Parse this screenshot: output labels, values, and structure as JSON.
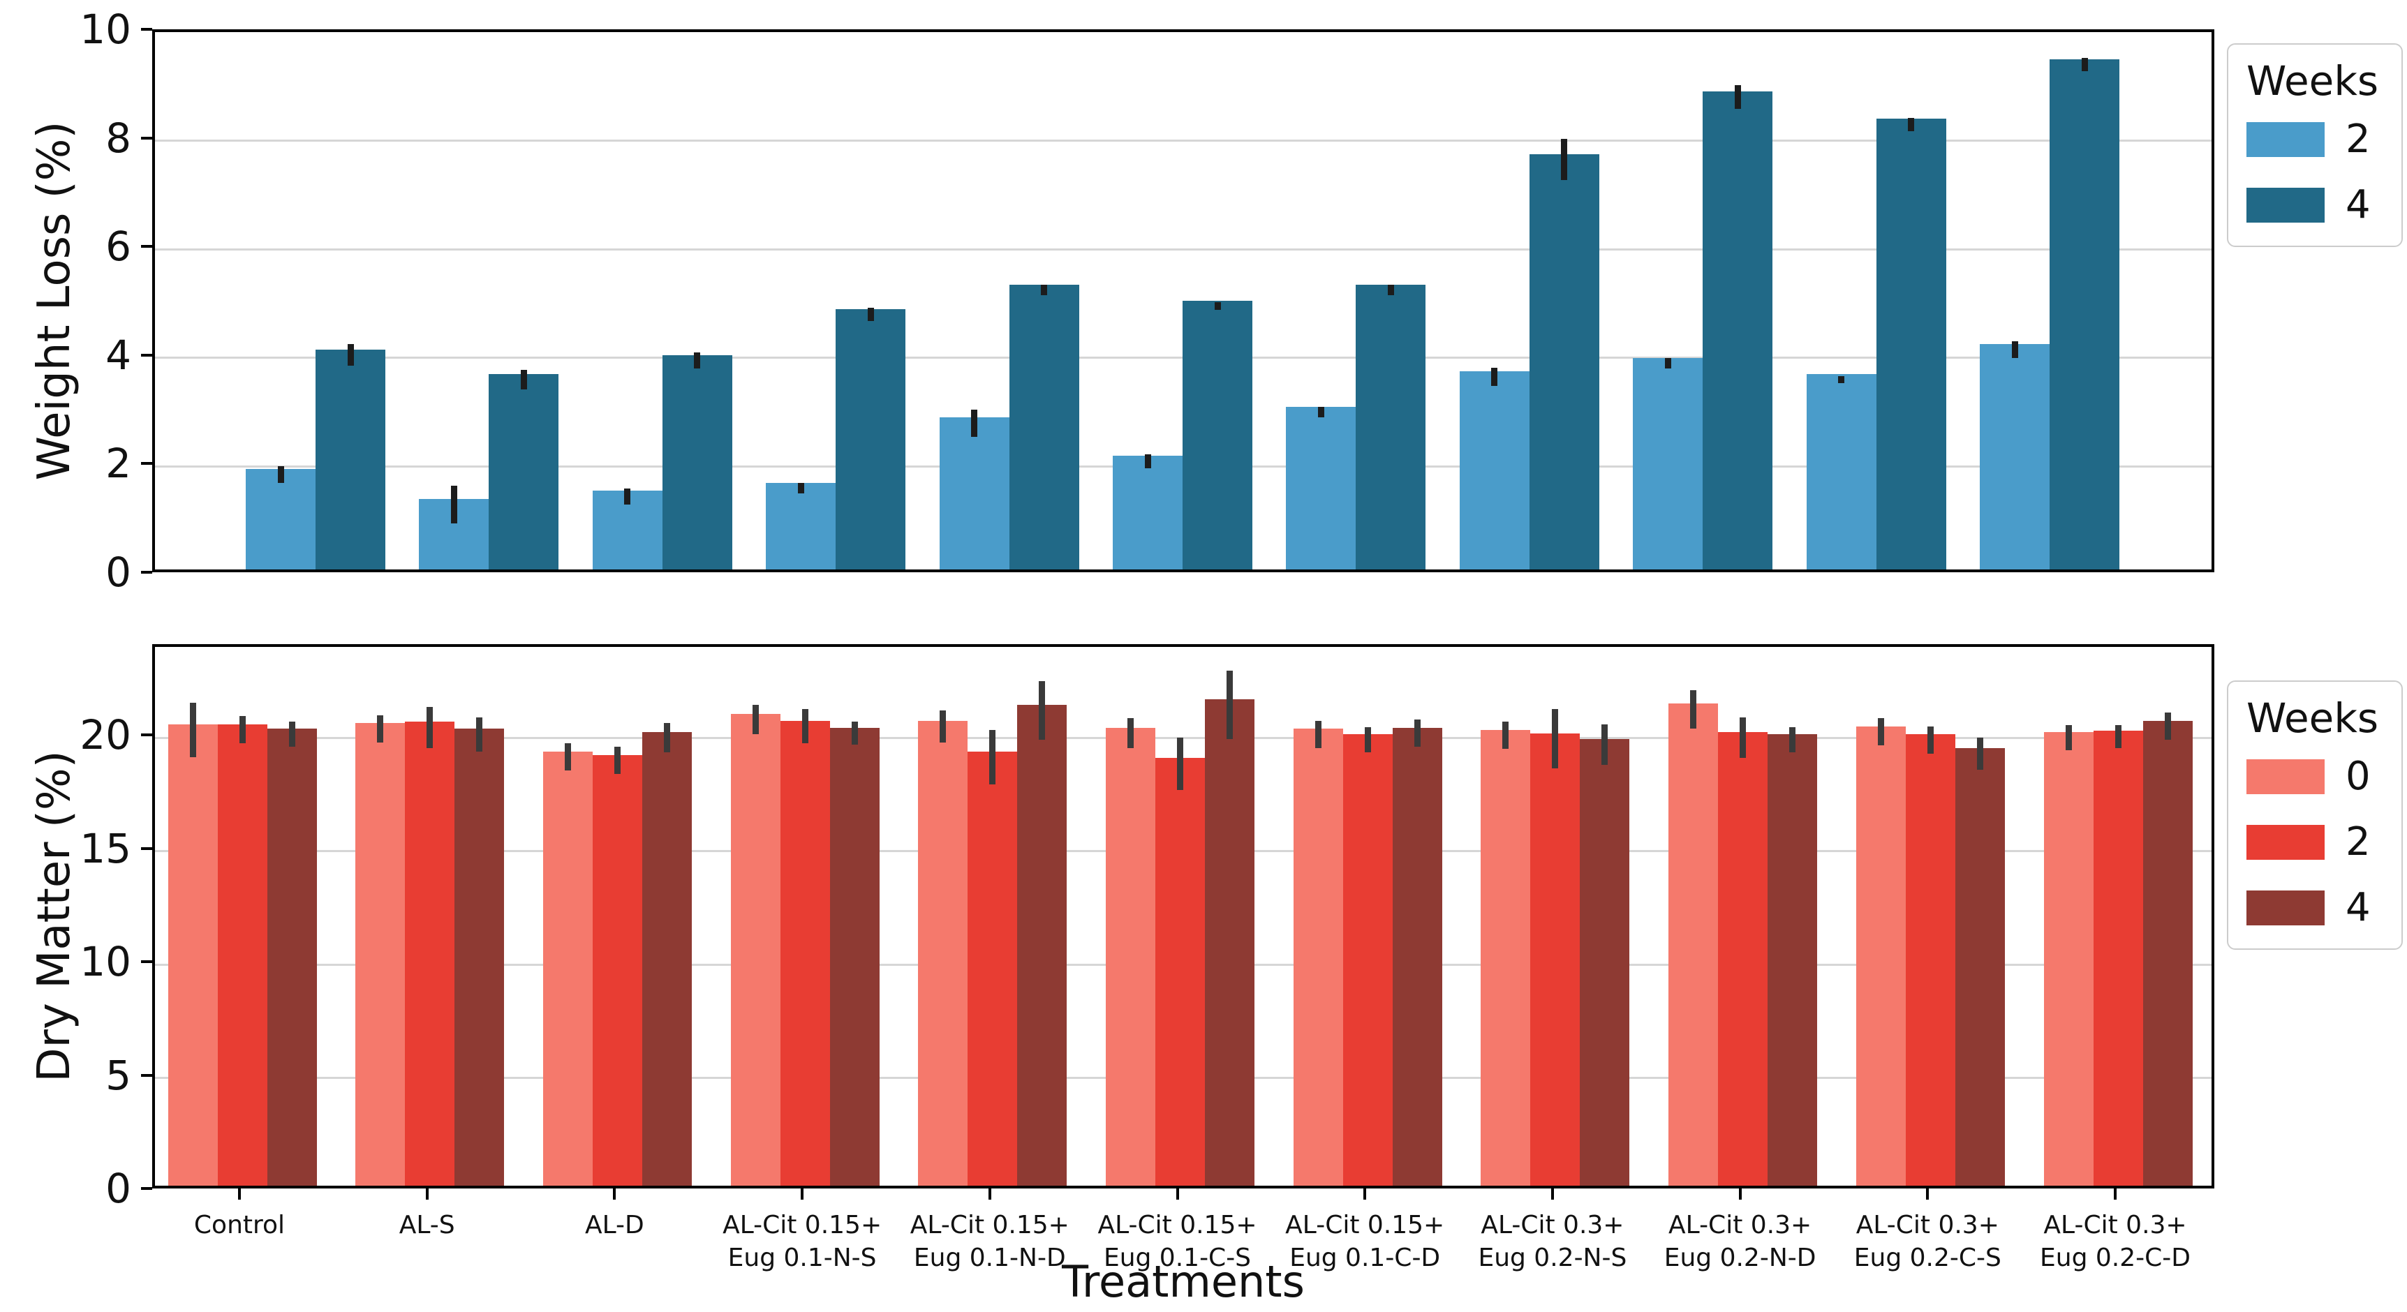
{
  "figure": {
    "background": "#ffffff"
  },
  "chart_data": [
    {
      "type": "bar",
      "title": "",
      "ylabel": "Weight Loss (%)",
      "xlabel": "",
      "ylim": [
        0,
        10
      ],
      "yticks": [
        0,
        2,
        4,
        6,
        8,
        10
      ],
      "grid": "horizontal",
      "legend_position": "upper right outside",
      "legend_title": "Weeks",
      "categories": [
        "Control",
        "AL-S",
        "AL-D",
        "AL-Cit 0.15+\nEug 0.1-N-S",
        "AL-Cit 0.15+\nEug 0.1-N-D",
        "AL-Cit 0.15+\nEug 0.1-C-S",
        "AL-Cit 0.15+\nEug 0.1-C-D",
        "AL-Cit 0.3+\nEug 0.2-N-S",
        "AL-Cit 0.3+\nEug 0.2-N-D",
        "AL-Cit 0.3+\nEug 0.2-C-S",
        "AL-Cit 0.3+\nEug 0.2-C-D"
      ],
      "error_bar_color": "#1c1c1c",
      "series": [
        {
          "name": "2",
          "color": "#4A9CCA",
          "values": [
            1.85,
            1.3,
            1.45,
            1.6,
            2.8,
            2.1,
            3.0,
            3.65,
            3.9,
            3.6,
            4.15
          ],
          "errors": [
            0.15,
            0.35,
            0.15,
            0.1,
            0.25,
            0.13,
            0.1,
            0.17,
            0.1,
            0.06,
            0.15
          ]
        },
        {
          "name": "4",
          "color": "#216987",
          "values": [
            4.05,
            3.6,
            3.95,
            4.8,
            5.25,
            4.95,
            5.25,
            7.65,
            8.8,
            8.3,
            9.4
          ],
          "errors": [
            0.2,
            0.18,
            0.15,
            0.12,
            0.1,
            0.07,
            0.1,
            0.38,
            0.22,
            0.12,
            0.12
          ]
        }
      ]
    },
    {
      "type": "bar",
      "title": "",
      "ylabel": "Dry Matter (%)",
      "xlabel": "Treatments",
      "ylim": [
        0,
        24
      ],
      "yticks": [
        0,
        5,
        10,
        15,
        20
      ],
      "grid": "horizontal",
      "legend_position": "upper right outside",
      "legend_title": "Weeks",
      "categories": [
        "Control",
        "AL-S",
        "AL-D",
        "AL-Cit 0.15+\nEug 0.1-N-S",
        "AL-Cit 0.15+\nEug 0.1-N-D",
        "AL-Cit 0.15+\nEug 0.1-C-S",
        "AL-Cit 0.15+\nEug 0.1-C-D",
        "AL-Cit 0.3+\nEug 0.2-N-S",
        "AL-Cit 0.3+\nEug 0.2-N-D",
        "AL-Cit 0.3+\nEug 0.2-C-S",
        "AL-Cit 0.3+\nEug 0.2-C-D"
      ],
      "error_bar_color": "#3a3a3a",
      "series": [
        {
          "name": "0",
          "color": "#F5796C",
          "values": [
            20.35,
            20.4,
            19.15,
            20.8,
            20.5,
            20.2,
            20.15,
            20.1,
            21.25,
            20.25,
            20.0
          ],
          "errors": [
            1.2,
            0.6,
            0.6,
            0.65,
            0.7,
            0.65,
            0.6,
            0.6,
            0.85,
            0.6,
            0.55
          ]
        },
        {
          "name": "2",
          "color": "#E83D33",
          "values": [
            20.35,
            20.45,
            19.0,
            20.5,
            19.15,
            18.85,
            19.9,
            19.95,
            20.0,
            19.9,
            20.05
          ],
          "errors": [
            0.6,
            0.9,
            0.6,
            0.75,
            1.2,
            1.15,
            0.55,
            1.3,
            0.9,
            0.6,
            0.5
          ]
        },
        {
          "name": "4",
          "color": "#8E3A33",
          "values": [
            20.15,
            20.15,
            20.0,
            20.2,
            21.2,
            21.45,
            20.2,
            19.7,
            19.9,
            19.3,
            20.5
          ],
          "errors": [
            0.55,
            0.75,
            0.65,
            0.5,
            1.3,
            1.5,
            0.6,
            0.9,
            0.55,
            0.7,
            0.6
          ]
        }
      ]
    }
  ]
}
